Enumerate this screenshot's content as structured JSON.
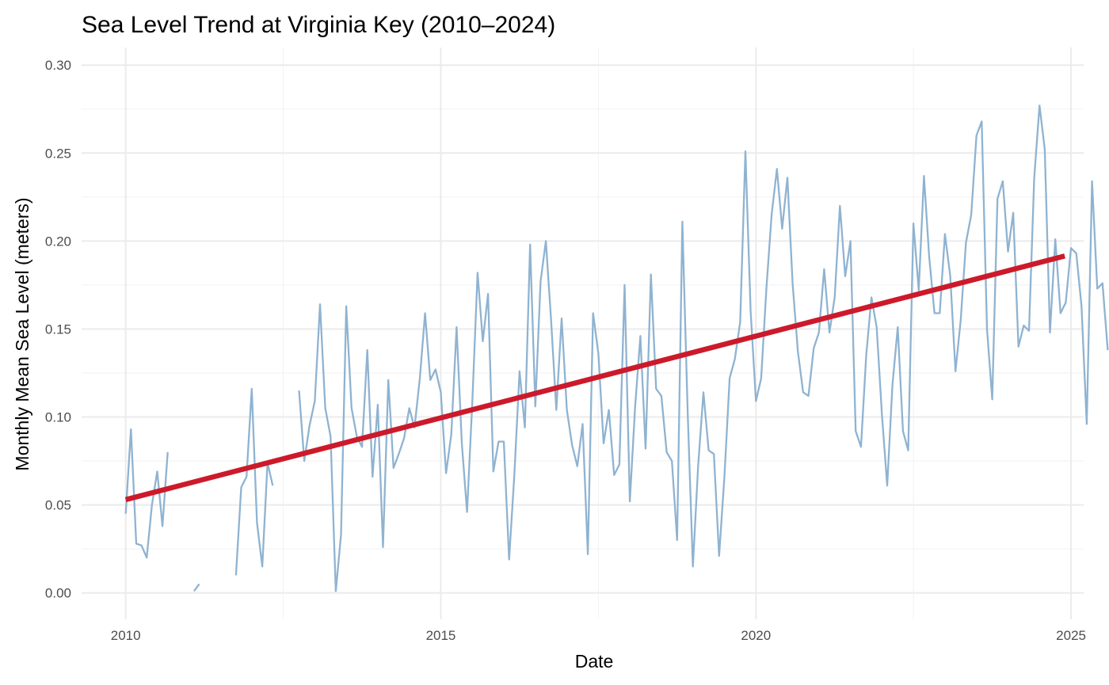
{
  "chart_data": {
    "type": "line",
    "title": "Sea Level Trend at Virginia Key (2010–2024)",
    "xlabel": "Date",
    "ylabel": "Monthly Mean Sea Level (meters)",
    "xlim": [
      2009.3,
      2025.2
    ],
    "ylim": [
      -0.015,
      0.31
    ],
    "x_ticks": [
      2010,
      2015,
      2020,
      2025
    ],
    "x_tick_labels": [
      "2010",
      "2015",
      "2020",
      "2025"
    ],
    "y_ticks": [
      0.0,
      0.05,
      0.1,
      0.15,
      0.2,
      0.25,
      0.3
    ],
    "y_tick_labels": [
      "0.00",
      "0.05",
      "0.10",
      "0.15",
      "0.20",
      "0.25",
      "0.30"
    ],
    "grid": true,
    "series": [
      {
        "type": "line",
        "color": "#8fb3d1",
        "x_start": 2010.0,
        "x_step": 0.08333,
        "values": [
          0.045,
          0.093,
          0.028,
          0.027,
          0.02,
          0.05,
          0.069,
          0.038,
          0.08,
          null,
          null,
          null,
          null,
          0.001,
          0.005,
          null,
          null,
          null,
          null,
          null,
          null,
          0.01,
          0.06,
          0.066,
          0.116,
          0.04,
          0.015,
          0.074,
          0.061,
          null,
          null,
          null,
          null,
          0.115,
          0.075,
          0.095,
          0.109,
          0.164,
          0.105,
          0.089,
          0.001,
          0.033,
          0.163,
          0.105,
          0.089,
          0.083,
          0.138,
          0.066,
          0.107,
          0.026,
          0.121,
          0.071,
          0.079,
          0.088,
          0.105,
          0.094,
          0.122,
          0.159,
          0.121,
          0.127,
          0.114,
          0.068,
          0.09,
          0.151,
          0.085,
          0.046,
          0.109,
          0.182,
          0.143,
          0.17,
          0.069,
          0.086,
          0.086,
          0.019,
          0.067,
          0.126,
          0.094,
          0.198,
          0.106,
          0.177,
          0.2,
          0.155,
          0.104,
          0.156,
          0.104,
          0.084,
          0.072,
          0.096,
          0.022,
          0.159,
          0.136,
          0.085,
          0.104,
          0.067,
          0.073,
          0.175,
          0.052,
          0.106,
          0.146,
          0.082,
          0.181,
          0.116,
          0.112,
          0.08,
          0.075,
          0.03,
          0.211,
          0.103,
          0.015,
          0.072,
          0.114,
          0.081,
          0.079,
          0.021,
          0.066,
          0.122,
          0.133,
          0.154,
          0.251,
          0.16,
          0.109,
          0.122,
          0.173,
          0.215,
          0.241,
          0.207,
          0.236,
          0.175,
          0.137,
          0.114,
          0.112,
          0.139,
          0.148,
          0.184,
          0.148,
          0.168,
          0.22,
          0.18,
          0.2,
          0.092,
          0.083,
          0.135,
          0.168,
          0.151,
          0.101,
          0.061,
          0.118,
          0.151,
          0.092,
          0.081,
          0.21,
          0.172,
          0.237,
          0.191,
          0.159,
          0.159,
          0.204,
          0.18,
          0.126,
          0.155,
          0.199,
          0.215,
          0.26,
          0.268,
          0.15,
          0.11,
          0.224,
          0.234,
          0.194,
          0.216,
          0.14,
          0.152,
          0.149,
          0.236,
          0.277,
          0.252,
          0.148,
          0.201,
          0.159,
          0.165,
          0.196,
          0.193,
          0.163,
          0.096,
          0.234,
          0.173,
          0.176,
          0.138
        ]
      },
      {
        "type": "trend",
        "color": "#cc1a2b",
        "x": [
          2010.0,
          2024.9
        ],
        "values": [
          0.053,
          0.1915
        ]
      }
    ]
  }
}
